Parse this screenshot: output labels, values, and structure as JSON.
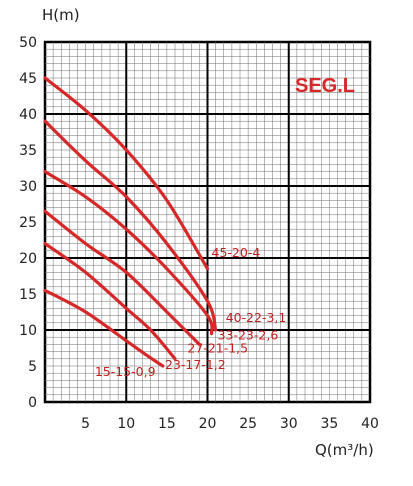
{
  "chart_data": {
    "type": "line",
    "title": "",
    "badge": "SEG.L",
    "ylabel": "H(m)",
    "xlabel": "Q(m³/h)",
    "xlim": [
      0,
      40
    ],
    "ylim": [
      0,
      50
    ],
    "xticks": [
      5,
      10,
      15,
      20,
      25,
      30,
      35,
      40
    ],
    "yticks": [
      0,
      5,
      10,
      15,
      20,
      25,
      30,
      35,
      40,
      45,
      50
    ],
    "grid": true,
    "series": [
      {
        "name": "45-20-4",
        "x": [
          0,
          5,
          10,
          15,
          20
        ],
        "y": [
          45,
          40.5,
          35,
          28,
          18.5
        ]
      },
      {
        "name": "40-22-3,1",
        "x": [
          0,
          5,
          10,
          15,
          20,
          21
        ],
        "y": [
          39,
          33.5,
          28.5,
          22,
          14,
          10
        ]
      },
      {
        "name": "33-23-2,6",
        "x": [
          0,
          5,
          10,
          15,
          20,
          20.5
        ],
        "y": [
          32,
          28.5,
          24,
          18.5,
          12,
          9.5
        ]
      },
      {
        "name": "27-21-1,5",
        "x": [
          0,
          5,
          10,
          15,
          19
        ],
        "y": [
          26.5,
          22,
          18,
          12.5,
          8
        ]
      },
      {
        "name": "23-17-1,2",
        "x": [
          0,
          5,
          10,
          13,
          16
        ],
        "y": [
          22,
          18,
          13,
          10,
          6
        ]
      },
      {
        "name": "15-15-0,9",
        "x": [
          0,
          5,
          10,
          12.5,
          14.5
        ],
        "y": [
          15.5,
          12.5,
          8.5,
          6.5,
          5
        ]
      }
    ]
  }
}
